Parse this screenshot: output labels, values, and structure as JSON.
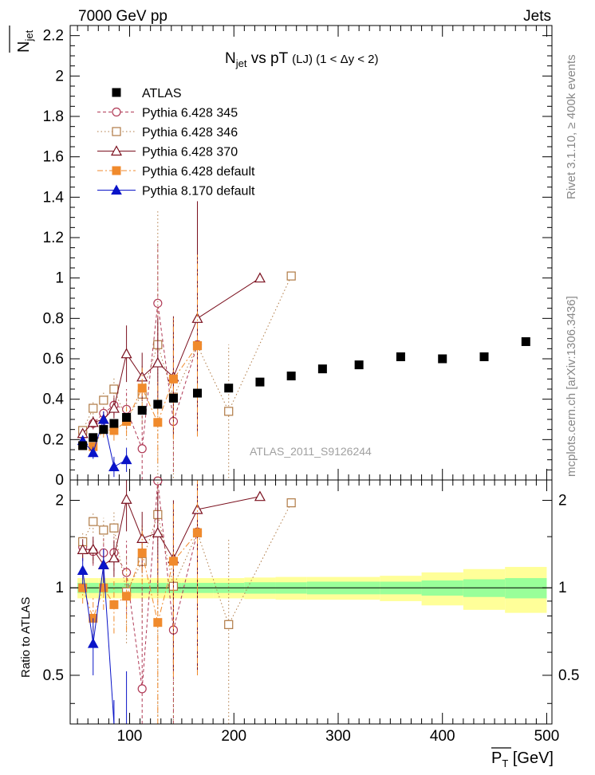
{
  "header": {
    "left": "7000 GeV pp",
    "right": "Jets",
    "plot_title": "N",
    "plot_title_sub": "jet",
    "plot_title_rest": " vs pT ",
    "plot_title_cond": "(LJ) (1 < Δy < 2)",
    "watermark": "ATLAS_2011_S9126244",
    "rivet_label": "Rivet 3.1.10, ≥ 400k events",
    "mcplots_label": "mcplots.cern.ch [arXiv:1306.3436]"
  },
  "chart_data": {
    "type": "scatter",
    "xlabel": "P",
    "xlabel_sub": "T",
    "xlabel_unit": " [GeV]",
    "ylabel": "N",
    "ylabel_sub": "jet",
    "ratio_ylabel": "Ratio to ATLAS",
    "xlim": [
      43,
      505
    ],
    "ylim": [
      0,
      2.25
    ],
    "ratio_ylim": [
      0.34,
      2.35
    ],
    "ratio_log": true,
    "xticks": [
      100,
      200,
      300,
      400,
      500
    ],
    "yticks": [
      0,
      0.2,
      0.4,
      0.6,
      0.8,
      1,
      1.2,
      1.4,
      1.6,
      1.8,
      2,
      2.2
    ],
    "ratio_ticks": [
      0.5,
      1,
      2
    ],
    "legend_position": "top-left",
    "series": [
      {
        "name": "ATLAS",
        "color": "#000000",
        "marker": "square-filled",
        "line": "none",
        "points": [
          {
            "x": 55,
            "y": 0.17,
            "e": 0.02
          },
          {
            "x": 65,
            "y": 0.21,
            "e": 0.02
          },
          {
            "x": 75,
            "y": 0.25,
            "e": 0.02
          },
          {
            "x": 85,
            "y": 0.28,
            "e": 0.02
          },
          {
            "x": 97,
            "y": 0.31,
            "e": 0.02
          },
          {
            "x": 112,
            "y": 0.345,
            "e": 0.02
          },
          {
            "x": 127,
            "y": 0.375,
            "e": 0.02
          },
          {
            "x": 142,
            "y": 0.405,
            "e": 0.02
          },
          {
            "x": 165,
            "y": 0.43,
            "e": 0.02
          },
          {
            "x": 195,
            "y": 0.455,
            "e": 0.02
          },
          {
            "x": 225,
            "y": 0.485,
            "e": 0.02
          },
          {
            "x": 255,
            "y": 0.515,
            "e": 0.02
          },
          {
            "x": 285,
            "y": 0.55,
            "e": 0.02
          },
          {
            "x": 320,
            "y": 0.57,
            "e": 0.02
          },
          {
            "x": 360,
            "y": 0.61,
            "e": 0.02
          },
          {
            "x": 400,
            "y": 0.6,
            "e": 0.02
          },
          {
            "x": 440,
            "y": 0.61,
            "e": 0.02
          },
          {
            "x": 480,
            "y": 0.685,
            "e": 0.02
          }
        ]
      },
      {
        "name": "Pythia 6.428 345",
        "color": "#b03a56",
        "marker": "circle-open",
        "line": "dashed",
        "points": [
          {
            "x": 55,
            "y": 0.235,
            "e": 0.02
          },
          {
            "x": 65,
            "y": 0.28,
            "e": 0.03
          },
          {
            "x": 75,
            "y": 0.33,
            "e": 0.04
          },
          {
            "x": 85,
            "y": 0.37,
            "e": 0.05
          },
          {
            "x": 97,
            "y": 0.35,
            "e": 0.1
          },
          {
            "x": 112,
            "y": 0.155,
            "e": 0.2
          },
          {
            "x": 127,
            "y": 0.875,
            "e": 0.3
          },
          {
            "x": 142,
            "y": 0.29,
            "e": 0.25
          },
          {
            "x": 165,
            "y": 0.67,
            "e": 0.45
          }
        ]
      },
      {
        "name": "Pythia 6.428 346",
        "color": "#b07a45",
        "marker": "square-open",
        "line": "dotted",
        "points": [
          {
            "x": 55,
            "y": 0.245,
            "e": 0.02
          },
          {
            "x": 65,
            "y": 0.355,
            "e": 0.03
          },
          {
            "x": 75,
            "y": 0.395,
            "e": 0.04
          },
          {
            "x": 85,
            "y": 0.45,
            "e": 0.06
          },
          {
            "x": 97,
            "y": 0.3,
            "e": 0.1
          },
          {
            "x": 112,
            "y": 0.425,
            "e": 0.15
          },
          {
            "x": 127,
            "y": 0.67,
            "e": 0.66
          },
          {
            "x": 142,
            "y": 0.41,
            "e": 0.4
          },
          {
            "x": 165,
            "y": 0.665,
            "e": 0.45
          },
          {
            "x": 195,
            "y": 0.34,
            "e": 0.33
          },
          {
            "x": 255,
            "y": 1.01,
            "e": 0
          }
        ]
      },
      {
        "name": "Pythia 6.428 370",
        "color": "#7a0f1d",
        "marker": "triangle-open",
        "line": "solid",
        "points": [
          {
            "x": 55,
            "y": 0.23,
            "e": 0.02
          },
          {
            "x": 65,
            "y": 0.285,
            "e": 0.03
          },
          {
            "x": 75,
            "y": 0.3,
            "e": 0.04
          },
          {
            "x": 85,
            "y": 0.355,
            "e": 0.05
          },
          {
            "x": 97,
            "y": 0.625,
            "e": 0.14
          },
          {
            "x": 112,
            "y": 0.51,
            "e": 0.12
          },
          {
            "x": 127,
            "y": 0.58,
            "e": 0.22
          },
          {
            "x": 142,
            "y": 0.51,
            "e": 0.3
          },
          {
            "x": 165,
            "y": 0.8,
            "e": 0.58
          },
          {
            "x": 225,
            "y": 1.0,
            "e": 0
          }
        ]
      },
      {
        "name": "Pythia 6.428 default",
        "color": "#f08a2c",
        "marker": "square-filled",
        "line": "dashdot",
        "points": [
          {
            "x": 55,
            "y": 0.17,
            "e": 0.02
          },
          {
            "x": 65,
            "y": 0.165,
            "e": 0.03
          },
          {
            "x": 75,
            "y": 0.25,
            "e": 0.04
          },
          {
            "x": 85,
            "y": 0.245,
            "e": 0.05
          },
          {
            "x": 97,
            "y": 0.29,
            "e": 0.07
          },
          {
            "x": 112,
            "y": 0.455,
            "e": 0.1
          },
          {
            "x": 127,
            "y": 0.285,
            "e": 0.2
          },
          {
            "x": 142,
            "y": 0.5,
            "e": 0.3
          },
          {
            "x": 165,
            "y": 0.665,
            "e": 0.45
          }
        ]
      },
      {
        "name": "Pythia 8.170 default",
        "color": "#0a14c8",
        "marker": "triangle-filled",
        "line": "solid",
        "points": [
          {
            "x": 55,
            "y": 0.195,
            "e": 0.02
          },
          {
            "x": 65,
            "y": 0.135,
            "e": 0.03
          },
          {
            "x": 75,
            "y": 0.3,
            "e": 0.04
          },
          {
            "x": 85,
            "y": 0.065,
            "e": 0.05
          },
          {
            "x": 97,
            "y": 0.1,
            "e": 0.06
          }
        ]
      }
    ],
    "ratio_bands": [
      {
        "x0": 50,
        "x1": 60,
        "inner": 0.04,
        "outer": 0.08
      },
      {
        "x0": 60,
        "x1": 70,
        "inner": 0.04,
        "outer": 0.08
      },
      {
        "x0": 70,
        "x1": 80,
        "inner": 0.04,
        "outer": 0.08
      },
      {
        "x0": 80,
        "x1": 90,
        "inner": 0.04,
        "outer": 0.08
      },
      {
        "x0": 90,
        "x1": 105,
        "inner": 0.04,
        "outer": 0.08
      },
      {
        "x0": 105,
        "x1": 120,
        "inner": 0.04,
        "outer": 0.08
      },
      {
        "x0": 120,
        "x1": 135,
        "inner": 0.04,
        "outer": 0.08
      },
      {
        "x0": 135,
        "x1": 150,
        "inner": 0.04,
        "outer": 0.08
      },
      {
        "x0": 150,
        "x1": 180,
        "inner": 0.04,
        "outer": 0.08
      },
      {
        "x0": 180,
        "x1": 210,
        "inner": 0.04,
        "outer": 0.08
      },
      {
        "x0": 210,
        "x1": 240,
        "inner": 0.045,
        "outer": 0.085
      },
      {
        "x0": 240,
        "x1": 270,
        "inner": 0.045,
        "outer": 0.09
      },
      {
        "x0": 270,
        "x1": 300,
        "inner": 0.05,
        "outer": 0.09
      },
      {
        "x0": 300,
        "x1": 340,
        "inner": 0.05,
        "outer": 0.09
      },
      {
        "x0": 340,
        "x1": 380,
        "inner": 0.05,
        "outer": 0.1
      },
      {
        "x0": 380,
        "x1": 420,
        "inner": 0.06,
        "outer": 0.13
      },
      {
        "x0": 420,
        "x1": 460,
        "inner": 0.07,
        "outer": 0.16
      },
      {
        "x0": 460,
        "x1": 500,
        "inner": 0.08,
        "outer": 0.18
      }
    ]
  }
}
